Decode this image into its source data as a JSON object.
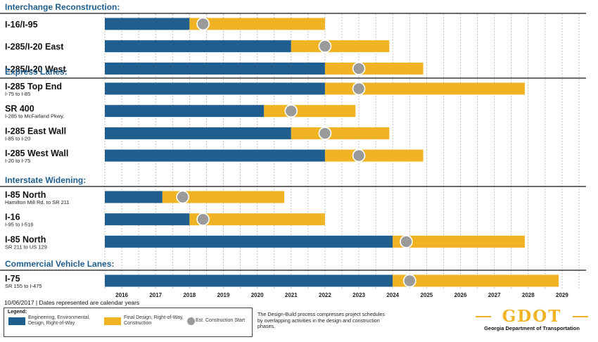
{
  "chart_data": {
    "type": "gantt",
    "x_ticks": [
      "2016",
      "2017",
      "2018",
      "2019",
      "2020",
      "2021",
      "2022",
      "2023",
      "2024",
      "2025",
      "2026",
      "2027",
      "2028",
      "2029"
    ],
    "xlim": [
      2016,
      2030
    ],
    "sections": [
      {
        "title": "Interchange Reconstruction:",
        "rows": [
          {
            "name": "I-16/I-95",
            "sub": "",
            "start": 2016,
            "blue_end": 2018.5,
            "yellow_end": 2022.5,
            "dot": 2018.9
          },
          {
            "name": "I-285/I-20 East",
            "sub": "",
            "start": 2016,
            "blue_end": 2021.5,
            "yellow_end": 2024.4,
            "dot": 2022.5
          },
          {
            "name": "I-285/I-20 West",
            "sub": "",
            "start": 2016,
            "blue_end": 2022.5,
            "yellow_end": 2025.4,
            "dot": 2023.5
          }
        ]
      },
      {
        "title": "Express Lanes:",
        "rows": [
          {
            "name": "I-285 Top End",
            "sub": "I-75 to I-85",
            "start": 2016,
            "blue_end": 2022.5,
            "yellow_end": 2028.4,
            "dot": 2023.5
          },
          {
            "name": "SR 400",
            "sub": "I-285 to McFarland Pkwy.",
            "start": 2016,
            "blue_end": 2020.7,
            "yellow_end": 2023.4,
            "dot": 2021.5
          },
          {
            "name": "I-285 East Wall",
            "sub": "I-85 to I-20",
            "start": 2016,
            "blue_end": 2021.5,
            "yellow_end": 2024.4,
            "dot": 2022.5
          },
          {
            "name": "I-285 West Wall",
            "sub": "I-20 to I-75",
            "start": 2016,
            "blue_end": 2022.5,
            "yellow_end": 2025.4,
            "dot": 2023.5
          }
        ]
      },
      {
        "title": "Interstate Widening:",
        "rows": [
          {
            "name": "I-85 North",
            "sub": "Hamilton Mill Rd. to SR 211",
            "start": 2016,
            "blue_end": 2017.7,
            "yellow_end": 2021.3,
            "dot": 2018.3
          },
          {
            "name": "I-16",
            "sub": "I-95 to I-516",
            "start": 2016,
            "blue_end": 2018.5,
            "yellow_end": 2022.5,
            "dot": 2018.9
          },
          {
            "name": "I-85 North",
            "sub": "SR 211 to US 129",
            "start": 2016,
            "blue_end": 2024.5,
            "yellow_end": 2028.4,
            "dot": 2024.9
          }
        ]
      },
      {
        "title": "Commercial Vehicle Lanes:",
        "rows": [
          {
            "name": "I-75",
            "sub": "SR 155 to I-475",
            "start": 2016,
            "blue_end": 2024.5,
            "yellow_end": 2029.4,
            "dot": 2025.0
          }
        ]
      }
    ],
    "colors": {
      "blue": "#1f5e8e",
      "yellow": "#f0b323",
      "dot": "#9a9a9a",
      "section_title": "#1f5e8e"
    }
  },
  "footer": {
    "date_note": "10/06/2017 | Dates represented are calendar years"
  },
  "legend": {
    "title": "Legend:",
    "blue_label": "Engineering, Environmental, Design, Right-of-Way",
    "yellow_label": "Final Design, Right-of-Way, Construction",
    "dot_label": "Est. Construction Start"
  },
  "note": "The Design-Build process compresses project schedules by overlapping activities in the design and construction phases.",
  "logo": {
    "wordmark": "GDOT",
    "subtitle": "Georgia Department of Transportation"
  }
}
